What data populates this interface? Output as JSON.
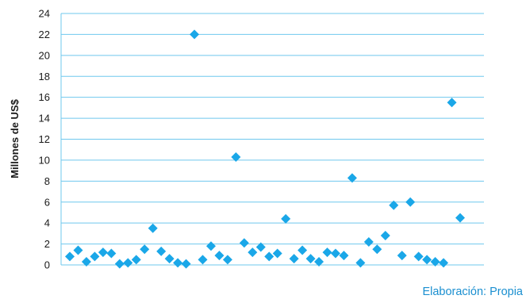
{
  "chart_data": {
    "type": "scatter",
    "title": "",
    "xlabel": "",
    "ylabel": "Millones de US$",
    "ylim": [
      0,
      24
    ],
    "yticks": [
      0,
      2,
      4,
      6,
      8,
      10,
      12,
      14,
      16,
      18,
      20,
      22,
      24
    ],
    "grid": "horizontal",
    "marker": "diamond",
    "series": [
      {
        "color": "#1aa7e8",
        "values": [
          0.8,
          1.4,
          0.3,
          0.8,
          1.2,
          1.1,
          0.1,
          0.2,
          0.5,
          1.5,
          3.5,
          1.3,
          0.6,
          0.2,
          0.1,
          22.0,
          0.5,
          1.8,
          0.9,
          0.5,
          10.3,
          2.1,
          1.2,
          1.7,
          0.8,
          1.1,
          4.4,
          0.6,
          1.4,
          0.6,
          0.3,
          1.2,
          1.1,
          0.9,
          8.3,
          0.2,
          2.2,
          1.5,
          2.8,
          5.7,
          0.9,
          6.0,
          0.8,
          0.5,
          0.3,
          0.2,
          15.5,
          4.5
        ]
      }
    ],
    "colors": {
      "marker": "#1aa7e8",
      "grid": "#6fc8ee",
      "axis": "#6fc8ee",
      "text": "#1a1a1a"
    }
  },
  "source": {
    "text": "Elaboración: Propia",
    "color": "#1a8fd0"
  }
}
